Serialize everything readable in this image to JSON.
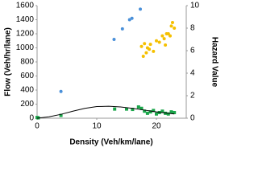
{
  "chart_data": {
    "type": "scatter",
    "xlabel": "Density (Veh/km/lane)",
    "ylabel": "Flow (Veh/hr/lane)",
    "y2label": "Hazard Value",
    "xlim": [
      0,
      25
    ],
    "xticks": [
      0,
      10,
      20
    ],
    "ylim": [
      0,
      1600
    ],
    "yticks": [
      0,
      200,
      400,
      600,
      800,
      1000,
      1200,
      1400,
      1600
    ],
    "y2lim": [
      0,
      10
    ],
    "y2ticks": [
      0,
      2,
      4,
      6,
      8,
      10
    ],
    "grid": false,
    "series": [
      {
        "color": "#4a90d9",
        "marker": "circle",
        "x": [
          4.0,
          12.9,
          14.3,
          15.5,
          15.9,
          17.3
        ],
        "values": [
          380,
          1120,
          1270,
          1400,
          1420,
          1550
        ]
      },
      {
        "color": "#f5c000",
        "marker": "circle",
        "x": [
          17.5,
          17.8,
          18.0,
          18.3,
          18.5,
          18.8,
          19.0,
          19.5,
          20.0,
          20.5,
          21.0,
          21.3,
          21.5,
          21.7,
          22.0,
          22.3,
          22.5,
          22.7,
          23.0
        ],
        "values": [
          1020,
          880,
          1060,
          930,
          1000,
          980,
          1050,
          950,
          1100,
          1080,
          1170,
          1130,
          1040,
          1200,
          1200,
          1170,
          1310,
          1360,
          1280
        ]
      },
      {
        "color": "#1aa64a",
        "marker": "square",
        "x": [
          0,
          0.2,
          4.0,
          13.0,
          15.0,
          16.0,
          17.0,
          17.5,
          18.0,
          18.5,
          19.0,
          19.5,
          20.0,
          20.5,
          21.0,
          21.5,
          22.0,
          22.5,
          23.0
        ],
        "values": [
          10,
          5,
          40,
          130,
          130,
          125,
          160,
          140,
          100,
          70,
          90,
          110,
          60,
          80,
          100,
          70,
          60,
          90,
          80
        ]
      },
      {
        "color": "#000000",
        "marker": "line",
        "x": [
          0,
          2,
          4,
          6,
          8,
          10,
          12,
          14,
          16,
          18,
          20,
          22,
          23
        ],
        "values": [
          0,
          20,
          55,
          100,
          140,
          165,
          170,
          160,
          140,
          115,
          90,
          70,
          60
        ]
      }
    ]
  }
}
